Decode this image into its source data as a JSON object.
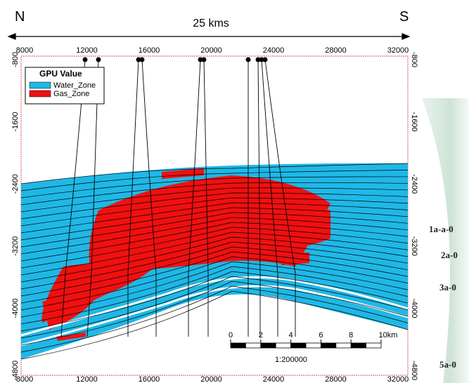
{
  "header": {
    "north": "N",
    "south": "S",
    "distance": "25 kms"
  },
  "axes": {
    "x_ticks": [
      "8000",
      "12000",
      "16000",
      "20000",
      "24000",
      "28000",
      "32000"
    ],
    "y_ticks": [
      "-800",
      "-1600",
      "-2400",
      "-3200",
      "-4000",
      "-4800"
    ]
  },
  "legend": {
    "title": "GPU Value",
    "items": [
      "Water_Zone",
      "Gas_Zone"
    ]
  },
  "scale_bar": {
    "ticks": [
      "0",
      "2",
      "4",
      "6",
      "8",
      "10km"
    ],
    "ratio": "1:200000"
  },
  "side_labels": [
    "1a-a-0",
    "2a-0",
    "3a-0",
    "5a-0"
  ]
}
